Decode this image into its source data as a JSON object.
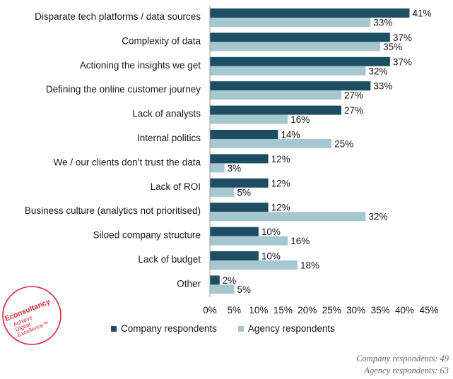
{
  "chart_data": {
    "type": "bar",
    "orientation": "horizontal",
    "categories": [
      "Disparate tech platforms / data sources",
      "Complexity of data",
      "Actioning the insights we get",
      "Defining the online customer journey",
      "Lack of analysts",
      "Internal politics",
      "We / our clients don’t trust the data",
      "Lack of ROI",
      "Business culture (analytics not prioritised)",
      "Siloed company structure",
      "Lack of budget",
      "Other"
    ],
    "series": [
      {
        "name": "Company respondents",
        "color": "#1d4e63",
        "values": [
          41,
          37,
          37,
          33,
          27,
          14,
          12,
          12,
          12,
          10,
          10,
          2
        ],
        "labels": [
          "41%",
          "37%",
          "37%",
          "33%",
          "27%",
          "14%",
          "12%",
          "12%",
          "12%",
          "10%",
          "10%",
          "2%"
        ]
      },
      {
        "name": "Agency respondents",
        "color": "#a6c7cf",
        "values": [
          33,
          35,
          32,
          27,
          16,
          25,
          3,
          5,
          32,
          16,
          18,
          5
        ],
        "labels": [
          "33%",
          "35%",
          "32%",
          "27%",
          "16%",
          "25%",
          "3%",
          "5%",
          "32%",
          "16%",
          "18%",
          "5%"
        ]
      }
    ],
    "xlim": [
      0,
      45
    ],
    "xticks": [
      0,
      5,
      10,
      15,
      20,
      25,
      30,
      35,
      40,
      45
    ],
    "xtick_labels": [
      "0%",
      "5%",
      "10%",
      "15%",
      "20%",
      "25%",
      "30%",
      "35%",
      "40%",
      "45%"
    ],
    "grid": false,
    "legend_position": "bottom"
  },
  "notes": {
    "company": "Company respondents: 49",
    "agency": "Agency respondents: 63"
  },
  "logo": {
    "brand": "Econsultancy",
    "tagline_1": "Achieve",
    "tagline_2": "Digital",
    "tagline_3": "Excellence™",
    "color": "#d9263a"
  }
}
